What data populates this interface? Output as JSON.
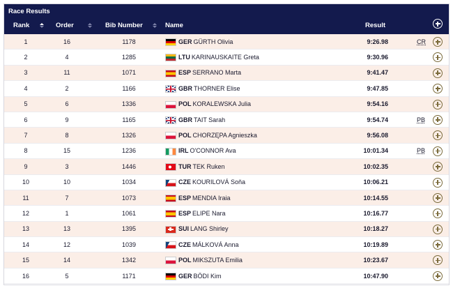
{
  "title": "Race Results",
  "columns": {
    "rank": "Rank",
    "order": "Order",
    "bib": "Bib Number",
    "name": "Name",
    "result": "Result"
  },
  "colors": {
    "header_bg": "#131a4d",
    "row_alt": "#fbeee7",
    "plus_icon": "#7a6a3a"
  },
  "rows": [
    {
      "rank": "1",
      "order": "16",
      "bib": "1178",
      "country": "GER",
      "name": "GÜRTH Olivia",
      "result": "9:26.98",
      "record": "CR",
      "flag": "de"
    },
    {
      "rank": "2",
      "order": "4",
      "bib": "1285",
      "country": "LTU",
      "name": "KARINAUSKAITE Greta",
      "result": "9:30.96",
      "record": "",
      "flag": "lt"
    },
    {
      "rank": "3",
      "order": "11",
      "bib": "1071",
      "country": "ESP",
      "name": "SERRANO Marta",
      "result": "9:41.47",
      "record": "",
      "flag": "es"
    },
    {
      "rank": "4",
      "order": "2",
      "bib": "1166",
      "country": "GBR",
      "name": "THORNER Elise",
      "result": "9:47.85",
      "record": "",
      "flag": "gb"
    },
    {
      "rank": "5",
      "order": "6",
      "bib": "1336",
      "country": "POL",
      "name": "KORALEWSKA Julia",
      "result": "9:54.16",
      "record": "",
      "flag": "pl"
    },
    {
      "rank": "6",
      "order": "9",
      "bib": "1165",
      "country": "GBR",
      "name": "TAIT Sarah",
      "result": "9:54.74",
      "record": "PB",
      "flag": "gb"
    },
    {
      "rank": "7",
      "order": "8",
      "bib": "1326",
      "country": "POL",
      "name": "CHORZĘPA Agnieszka",
      "result": "9:56.08",
      "record": "",
      "flag": "pl"
    },
    {
      "rank": "8",
      "order": "15",
      "bib": "1236",
      "country": "IRL",
      "name": "O'CONNOR Ava",
      "result": "10:01.34",
      "record": "PB",
      "flag": "ie"
    },
    {
      "rank": "9",
      "order": "3",
      "bib": "1446",
      "country": "TUR",
      "name": "TEK Ruken",
      "result": "10:02.35",
      "record": "",
      "flag": "tr"
    },
    {
      "rank": "10",
      "order": "10",
      "bib": "1034",
      "country": "CZE",
      "name": "KOURILOVÁ Soňa",
      "result": "10:06.21",
      "record": "",
      "flag": "cz"
    },
    {
      "rank": "11",
      "order": "7",
      "bib": "1073",
      "country": "ESP",
      "name": "MENDIA Iraia",
      "result": "10:14.55",
      "record": "",
      "flag": "es"
    },
    {
      "rank": "12",
      "order": "1",
      "bib": "1061",
      "country": "ESP",
      "name": "ELIPE Nara",
      "result": "10:16.77",
      "record": "",
      "flag": "es"
    },
    {
      "rank": "13",
      "order": "13",
      "bib": "1395",
      "country": "SUI",
      "name": "LANG Shirley",
      "result": "10:18.27",
      "record": "",
      "flag": "ch"
    },
    {
      "rank": "14",
      "order": "12",
      "bib": "1039",
      "country": "CZE",
      "name": "MÁLKOVÁ Anna",
      "result": "10:19.89",
      "record": "",
      "flag": "cz"
    },
    {
      "rank": "15",
      "order": "14",
      "bib": "1342",
      "country": "POL",
      "name": "MIKSZUTA Emilia",
      "result": "10:23.67",
      "record": "",
      "flag": "pl"
    },
    {
      "rank": "16",
      "order": "5",
      "bib": "1171",
      "country": "GER",
      "name": "BÖDI Kim",
      "result": "10:47.90",
      "record": "",
      "flag": "de"
    }
  ]
}
